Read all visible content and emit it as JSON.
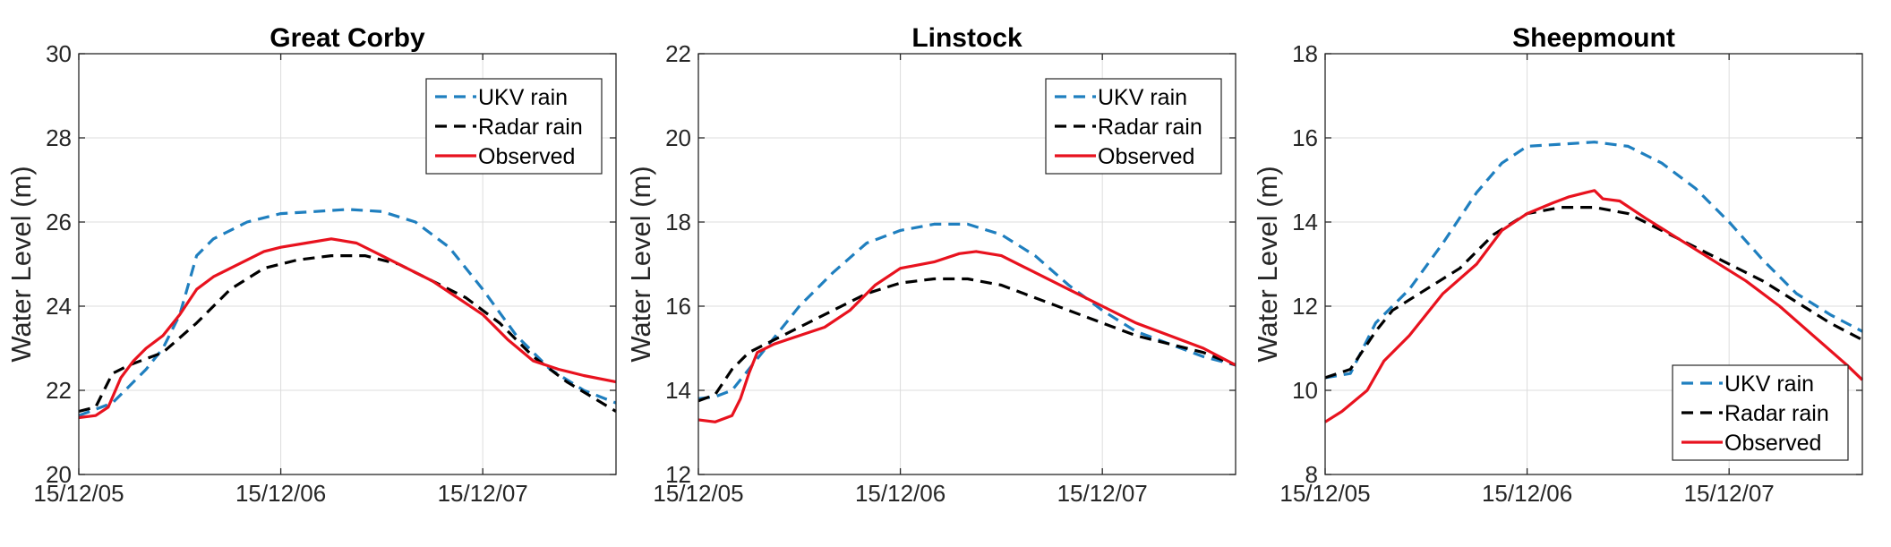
{
  "figure": {
    "ylabel": "Water Level (m)",
    "colors": {
      "ukv": "#1f7fbf",
      "radar": "#000000",
      "observed": "#e8121e",
      "grid": "#dcdcdc",
      "axis": "#262626"
    }
  },
  "chart_data": [
    {
      "type": "line",
      "title": "Great Corby",
      "ylabel": "Water Level (m)",
      "xlim": [
        "15/12/05 00:00",
        "15/12/07 15:50"
      ],
      "ylim": [
        20,
        30
      ],
      "yticks": [
        "20",
        "22",
        "24",
        "26",
        "28",
        "30"
      ],
      "xticks": [
        "15/12/05",
        "15/12/06",
        "15/12/07"
      ],
      "legend": "top-right",
      "grid": true,
      "series": [
        {
          "name": "UKV rain",
          "style": "dashed",
          "x": [
            "15/12/05 00:00",
            "15/12/05 04:00",
            "15/12/05 08:00",
            "15/12/05 10:00",
            "15/12/05 12:00",
            "15/12/05 14:00",
            "15/12/05 16:00",
            "15/12/05 20:00",
            "15/12/06 00:00",
            "15/12/06 04:00",
            "15/12/06 08:00",
            "15/12/06 12:00",
            "15/12/06 16:00",
            "15/12/06 20:00",
            "15/12/07 00:00",
            "15/12/07 04:00",
            "15/12/07 08:00",
            "15/12/07 12:00",
            "15/12/07 15:50"
          ],
          "y": [
            21.4,
            21.7,
            22.5,
            23.0,
            23.8,
            25.2,
            25.6,
            26.0,
            26.2,
            26.25,
            26.3,
            26.25,
            26.0,
            25.4,
            24.4,
            23.3,
            22.5,
            22.0,
            21.7
          ]
        },
        {
          "name": "Radar rain",
          "style": "dashed",
          "x": [
            "15/12/05 00:00",
            "15/12/05 02:00",
            "15/12/05 04:00",
            "15/12/05 06:00",
            "15/12/05 10:00",
            "15/12/05 14:00",
            "15/12/05 18:00",
            "15/12/05 22:00",
            "15/12/06 02:00",
            "15/12/06 06:00",
            "15/12/06 10:00",
            "15/12/06 14:00",
            "15/12/06 18:00",
            "15/12/06 22:00",
            "15/12/07 02:00",
            "15/12/07 06:00",
            "15/12/07 10:00",
            "15/12/07 15:50"
          ],
          "y": [
            21.5,
            21.6,
            22.4,
            22.6,
            22.9,
            23.6,
            24.4,
            24.9,
            25.1,
            25.2,
            25.2,
            25.0,
            24.6,
            24.2,
            23.6,
            22.8,
            22.2,
            21.5
          ]
        },
        {
          "name": "Observed",
          "style": "solid",
          "x": [
            "15/12/05 00:00",
            "15/12/05 02:00",
            "15/12/05 03:30",
            "15/12/05 05:00",
            "15/12/05 06:30",
            "15/12/05 08:00",
            "15/12/05 10:00",
            "15/12/05 12:00",
            "15/12/05 14:00",
            "15/12/05 16:00",
            "15/12/05 18:00",
            "15/12/05 20:00",
            "15/12/05 22:00",
            "15/12/06 00:00",
            "15/12/06 03:00",
            "15/12/06 06:00",
            "15/12/06 09:00",
            "15/12/06 12:00",
            "15/12/06 15:00",
            "15/12/06 18:00",
            "15/12/06 21:00",
            "15/12/07 00:00",
            "15/12/07 03:00",
            "15/12/07 06:00",
            "15/12/07 09:00",
            "15/12/07 12:00",
            "15/12/07 15:50"
          ],
          "y": [
            21.35,
            21.4,
            21.6,
            22.3,
            22.7,
            23.0,
            23.3,
            23.8,
            24.4,
            24.7,
            24.9,
            25.1,
            25.3,
            25.4,
            25.5,
            25.6,
            25.5,
            25.2,
            24.9,
            24.6,
            24.2,
            23.8,
            23.2,
            22.7,
            22.5,
            22.35,
            22.2
          ]
        }
      ]
    },
    {
      "type": "line",
      "title": "Linstock",
      "ylabel": "Water Level (m)",
      "xlim": [
        "15/12/05 00:00",
        "15/12/07 15:50"
      ],
      "ylim": [
        12,
        22
      ],
      "yticks": [
        "12",
        "14",
        "16",
        "18",
        "20",
        "22"
      ],
      "xticks": [
        "15/12/05",
        "15/12/06",
        "15/12/07"
      ],
      "legend": "top-right",
      "grid": true,
      "series": [
        {
          "name": "UKV rain",
          "style": "dashed",
          "x": [
            "15/12/05 00:00",
            "15/12/05 02:00",
            "15/12/05 04:00",
            "15/12/05 06:00",
            "15/12/05 08:00",
            "15/12/05 10:00",
            "15/12/05 12:00",
            "15/12/05 16:00",
            "15/12/05 20:00",
            "15/12/06 00:00",
            "15/12/06 04:00",
            "15/12/06 08:00",
            "15/12/06 12:00",
            "15/12/06 16:00",
            "15/12/06 20:00",
            "15/12/07 00:00",
            "15/12/07 04:00",
            "15/12/07 08:00",
            "15/12/07 12:00",
            "15/12/07 15:50"
          ],
          "y": [
            13.8,
            13.85,
            14.0,
            14.5,
            15.0,
            15.5,
            16.0,
            16.8,
            17.5,
            17.8,
            17.95,
            17.95,
            17.7,
            17.2,
            16.5,
            15.9,
            15.4,
            15.1,
            14.8,
            14.6
          ]
        },
        {
          "name": "Radar rain",
          "style": "dashed",
          "x": [
            "15/12/05 00:00",
            "15/12/05 02:00",
            "15/12/05 04:00",
            "15/12/05 06:00",
            "15/12/05 08:00",
            "15/12/05 12:00",
            "15/12/05 16:00",
            "15/12/05 20:00",
            "15/12/06 00:00",
            "15/12/06 04:00",
            "15/12/06 08:00",
            "15/12/06 12:00",
            "15/12/06 16:00",
            "15/12/06 20:00",
            "15/12/07 00:00",
            "15/12/07 04:00",
            "15/12/07 08:00",
            "15/12/07 12:00",
            "15/12/07 15:50"
          ],
          "y": [
            13.75,
            13.9,
            14.5,
            14.9,
            15.1,
            15.5,
            15.9,
            16.3,
            16.55,
            16.65,
            16.65,
            16.5,
            16.2,
            15.9,
            15.6,
            15.3,
            15.1,
            14.9,
            14.6
          ]
        },
        {
          "name": "Observed",
          "style": "solid",
          "x": [
            "15/12/05 00:00",
            "15/12/05 02:00",
            "15/12/05 04:00",
            "15/12/05 05:00",
            "15/12/05 06:00",
            "15/12/05 07:00",
            "15/12/05 09:00",
            "15/12/05 12:00",
            "15/12/05 15:00",
            "15/12/05 18:00",
            "15/12/05 21:00",
            "15/12/06 00:00",
            "15/12/06 04:00",
            "15/12/06 07:00",
            "15/12/06 09:00",
            "15/12/06 12:00",
            "15/12/06 15:00",
            "15/12/06 18:00",
            "15/12/06 21:00",
            "15/12/07 00:00",
            "15/12/07 04:00",
            "15/12/07 08:00",
            "15/12/07 12:00",
            "15/12/07 15:50"
          ],
          "y": [
            13.3,
            13.25,
            13.4,
            13.8,
            14.4,
            14.9,
            15.1,
            15.3,
            15.5,
            15.9,
            16.5,
            16.9,
            17.05,
            17.25,
            17.3,
            17.2,
            16.9,
            16.6,
            16.3,
            16.0,
            15.6,
            15.3,
            15.0,
            14.6
          ]
        }
      ]
    },
    {
      "type": "line",
      "title": "Sheepmount",
      "ylabel": "Water Level (m)",
      "xlim": [
        "15/12/05 00:00",
        "15/12/07 15:50"
      ],
      "ylim": [
        8,
        18
      ],
      "yticks": [
        "8",
        "10",
        "12",
        "14",
        "16",
        "18"
      ],
      "xticks": [
        "15/12/05",
        "15/12/06",
        "15/12/07"
      ],
      "legend": "bottom-right",
      "grid": true,
      "series": [
        {
          "name": "UKV rain",
          "style": "dashed",
          "x": [
            "15/12/05 00:00",
            "15/12/05 03:00",
            "15/12/05 06:00",
            "15/12/05 10:00",
            "15/12/05 14:00",
            "15/12/05 18:00",
            "15/12/05 21:00",
            "15/12/06 00:00",
            "15/12/06 04:00",
            "15/12/06 08:00",
            "15/12/06 12:00",
            "15/12/06 16:00",
            "15/12/06 20:00",
            "15/12/07 00:00",
            "15/12/07 04:00",
            "15/12/07 08:00",
            "15/12/07 12:00",
            "15/12/07 15:50"
          ],
          "y": [
            10.3,
            10.4,
            11.6,
            12.4,
            13.5,
            14.7,
            15.4,
            15.8,
            15.85,
            15.9,
            15.8,
            15.4,
            14.8,
            14.0,
            13.1,
            12.3,
            11.8,
            11.4
          ]
        },
        {
          "name": "Radar rain",
          "style": "dashed",
          "x": [
            "15/12/05 00:00",
            "15/12/05 03:00",
            "15/12/05 06:00",
            "15/12/05 08:00",
            "15/12/05 12:00",
            "15/12/05 16:00",
            "15/12/05 20:00",
            "15/12/06 00:00",
            "15/12/06 04:00",
            "15/12/06 08:00",
            "15/12/06 12:00",
            "15/12/06 16:00",
            "15/12/06 20:00",
            "15/12/07 00:00",
            "15/12/07 04:00",
            "15/12/07 08:00",
            "15/12/07 12:00",
            "15/12/07 15:50"
          ],
          "y": [
            10.3,
            10.5,
            11.4,
            11.9,
            12.4,
            12.9,
            13.7,
            14.2,
            14.35,
            14.35,
            14.2,
            13.8,
            13.4,
            13.0,
            12.6,
            12.1,
            11.6,
            11.2
          ]
        },
        {
          "name": "Observed",
          "style": "solid",
          "x": [
            "15/12/05 00:00",
            "15/12/05 02:00",
            "15/12/05 05:00",
            "15/12/05 07:00",
            "15/12/05 10:00",
            "15/12/05 14:00",
            "15/12/05 18:00",
            "15/12/05 21:00",
            "15/12/06 00:00",
            "15/12/06 03:00",
            "15/12/06 05:00",
            "15/12/06 07:00",
            "15/12/06 08:00",
            "15/12/06 09:00",
            "15/12/06 11:00",
            "15/12/06 14:00",
            "15/12/06 18:00",
            "15/12/06 22:00",
            "15/12/07 02:00",
            "15/12/07 06:00",
            "15/12/07 10:00",
            "15/12/07 14:00",
            "15/12/07 15:50"
          ],
          "y": [
            9.25,
            9.5,
            10.0,
            10.7,
            11.3,
            12.3,
            13.0,
            13.8,
            14.2,
            14.45,
            14.6,
            14.7,
            14.75,
            14.55,
            14.5,
            14.1,
            13.6,
            13.1,
            12.6,
            12.0,
            11.3,
            10.6,
            10.25
          ]
        }
      ]
    }
  ]
}
